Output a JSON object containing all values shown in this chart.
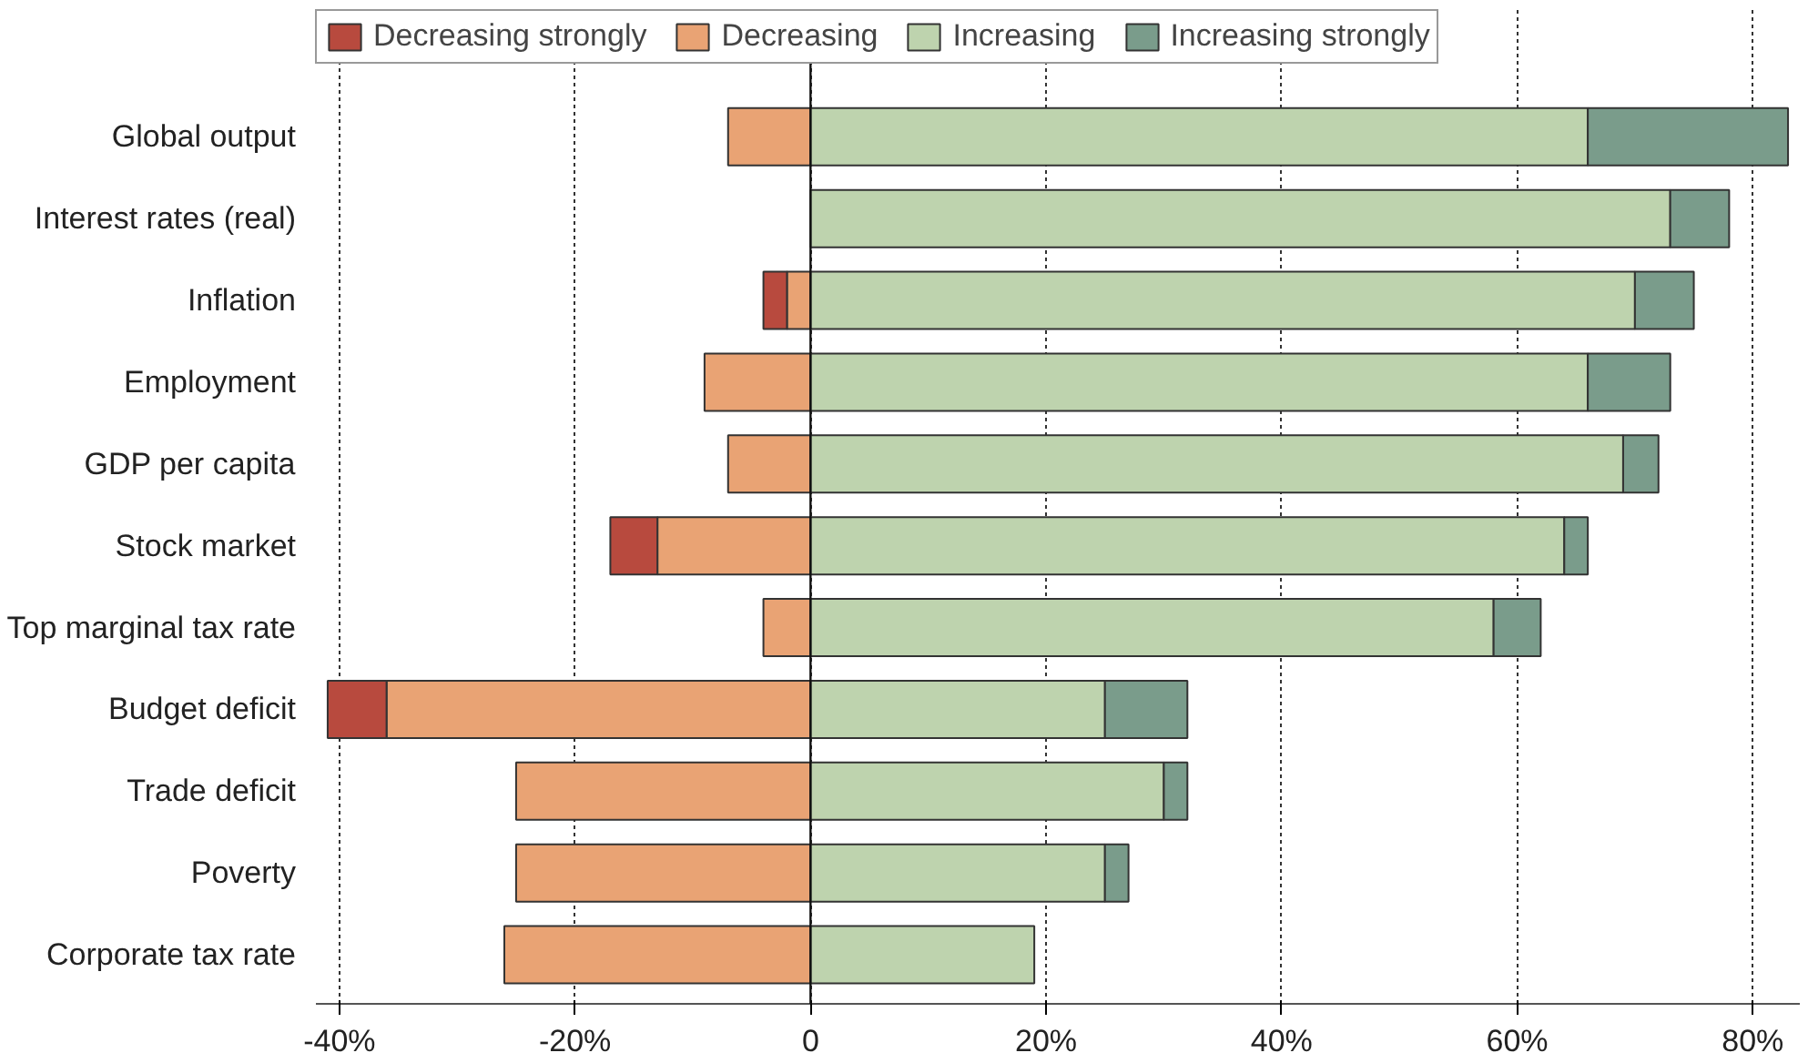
{
  "chart_data": {
    "type": "bar",
    "orientation": "horizontal",
    "stacked": true,
    "categories": [
      "Global output",
      "Interest rates (real)",
      "Inflation",
      "Employment",
      "GDP per capita",
      "Stock market",
      "Top marginal tax rate",
      "Budget deficit",
      "Trade deficit",
      "Poverty",
      "Corporate tax rate"
    ],
    "series": [
      {
        "name": "Decreasing",
        "color": "#e9a374",
        "values": [
          -7,
          null,
          -2,
          -9,
          -7,
          -13,
          -4,
          -36,
          -25,
          -25,
          -26
        ]
      },
      {
        "name": "Decreasing strongly",
        "color": "#b84a3e",
        "values": [
          null,
          null,
          -2,
          null,
          null,
          -4,
          null,
          -5,
          null,
          null,
          null
        ]
      },
      {
        "name": "Increasing",
        "color": "#bed3ae",
        "values": [
          66,
          73,
          70,
          66,
          69,
          64,
          58,
          25,
          30,
          25,
          19
        ]
      },
      {
        "name": "Increasing strongly",
        "color": "#7a9c8b",
        "values": [
          17,
          5,
          5,
          7,
          3,
          2,
          4,
          7,
          2,
          2,
          null
        ]
      }
    ],
    "xlim": [
      -42,
      84
    ],
    "xticks": [
      {
        "value": -40,
        "label": "-40%"
      },
      {
        "value": -20,
        "label": "-20%"
      },
      0,
      {
        "value": 20,
        "label": "20%"
      },
      {
        "value": 40,
        "label": "40%"
      },
      {
        "value": 60,
        "label": "60%"
      },
      {
        "value": 80,
        "label": "80%"
      }
    ],
    "grid": "x",
    "legend": "top"
  }
}
